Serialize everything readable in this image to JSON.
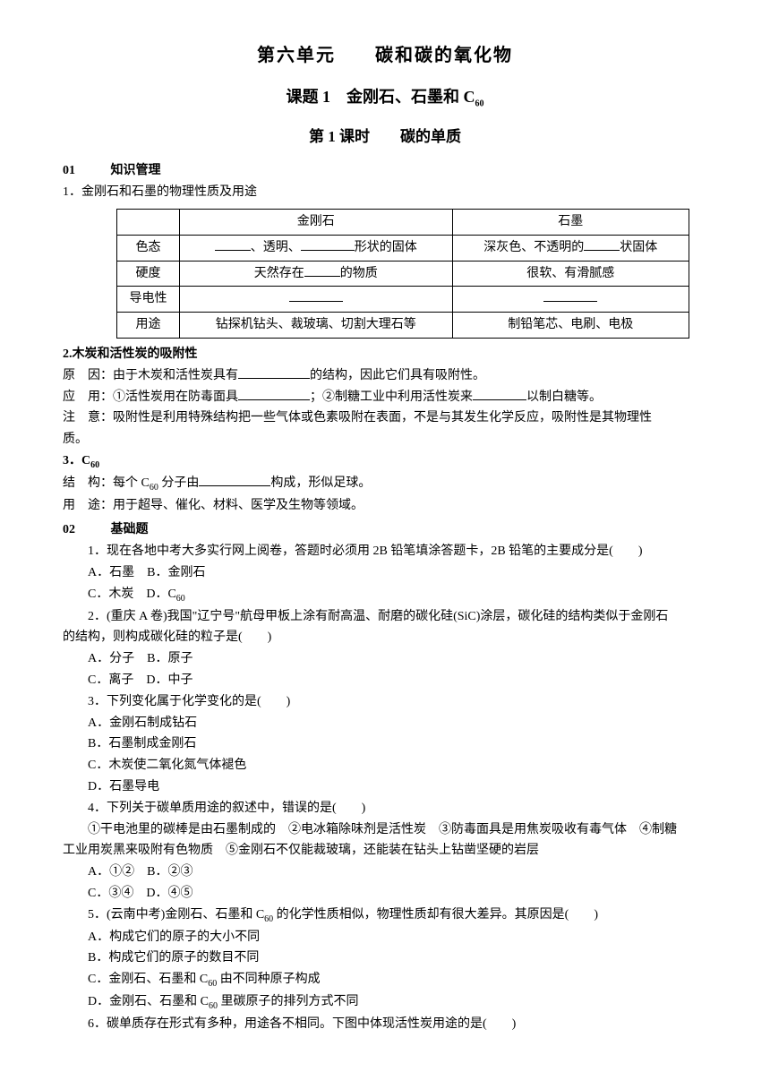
{
  "titles": {
    "main": "第六单元　　碳和碳的氧化物",
    "sub": "课题 1　金刚石、石墨和 C",
    "sub_subscript": "60",
    "lesson": "第 1 课时　　碳的单质"
  },
  "section01": {
    "num": "01",
    "label": "知识管理"
  },
  "item1": {
    "title": "1．金刚石和石墨的物理性质及用途",
    "table": {
      "headers": [
        "",
        "金刚石",
        "石墨"
      ],
      "rows": [
        {
          "label": "色态",
          "col1_parts": [
            "、透明、",
            "形状的固体"
          ],
          "col2_parts": [
            "深灰色、不透明的",
            "状固体"
          ]
        },
        {
          "label": "硬度",
          "col1_parts": [
            "天然存在",
            "的物质"
          ],
          "col2": "很软、有滑腻感"
        },
        {
          "label": "导电性",
          "col1": "",
          "col2": ""
        },
        {
          "label": "用途",
          "col1": "钻探机钻头、裁玻璃、切割大理石等",
          "col2": "制铅笔芯、电刷、电极"
        }
      ]
    }
  },
  "item2": {
    "title": "2.木炭和活性炭的吸附性",
    "lines": {
      "reason_label": "原",
      "reason_label2": "因：",
      "reason_text1": "由于木炭和活性炭具有",
      "reason_text2": "的结构，因此它们具有吸附性。",
      "use_label": "应",
      "use_label2": "用：",
      "use_text1": "①活性炭用在防毒面具",
      "use_text2": "；②制糖工业中利用活性炭来",
      "use_text3": "以制白糖等。",
      "note_label": "注",
      "note_label2": "意：",
      "note_text": "吸附性是利用特殊结构把一些气体或色素吸附在表面，不是与其发生化学反应，吸附性是其物理性",
      "note_text2": "质。"
    }
  },
  "item3": {
    "title_prefix": "3．C",
    "title_sub": "60",
    "struct_label": "结",
    "struct_label2": "构：",
    "struct_text1": "每个 C",
    "struct_sub": "60",
    "struct_text2": " 分子由",
    "struct_text3": "构成，形似足球。",
    "use_label": "用",
    "use_label2": "途：",
    "use_text": "用于超导、催化、材料、医学及生物等领域。"
  },
  "section02": {
    "num": "02",
    "label": "基础题"
  },
  "questions": {
    "q1": {
      "stem": "1．现在各地中考大多实行网上阅卷，答题时必须用 2B 铅笔填涂答题卡，2B 铅笔的主要成分是(　　)",
      "optA": "A．石墨　B．金刚石",
      "optC_pre": "C．木炭　D．C",
      "optC_sub": "60"
    },
    "q2": {
      "stem1": "2．(重庆 A 卷)我国\"辽宁号\"航母甲板上涂有耐高温、耐磨的碳化硅(SiC)涂层，碳化硅的结构类似于金刚石",
      "stem2": "的结构，则构成碳化硅的粒子是(　　)",
      "optA": "A．分子　B．原子",
      "optC": "C．离子　D．中子"
    },
    "q3": {
      "stem": "3．下列变化属于化学变化的是(　　)",
      "optA": "A．金刚石制成钻石",
      "optB": "B．石墨制成金刚石",
      "optC": "C．木炭使二氧化氮气体褪色",
      "optD": "D．石墨导电"
    },
    "q4": {
      "stem": "4．下列关于碳单质用途的叙述中，错误的是(　　)",
      "detail1": "①干电池里的碳棒是由石墨制成的　②电冰箱除味剂是活性炭　③防毒面具是用焦炭吸收有毒气体　④制糖",
      "detail2": "工业用炭黑来吸附有色物质　⑤金刚石不仅能裁玻璃，还能装在钻头上钻凿坚硬的岩层",
      "optA": "A．①②　B．②③",
      "optC": "C．③④　D．④⑤"
    },
    "q5": {
      "stem_pre": "5．(云南中考)金刚石、石墨和 C",
      "stem_sub": "60",
      "stem_post": " 的化学性质相似，物理性质却有很大差异。其原因是(　　)",
      "optA": "A．构成它们的原子的大小不同",
      "optB": "B．构成它们的原子的数目不同",
      "optC_pre": "C．金刚石、石墨和 C",
      "optC_sub": "60",
      "optC_post": " 由不同种原子构成",
      "optD_pre": "D．金刚石、石墨和 C",
      "optD_sub": "60",
      "optD_post": " 里碳原子的排列方式不同"
    },
    "q6": {
      "stem": "6．碳单质存在形式有多种，用途各不相同。下图中体现活性炭用途的是(　　)"
    }
  }
}
